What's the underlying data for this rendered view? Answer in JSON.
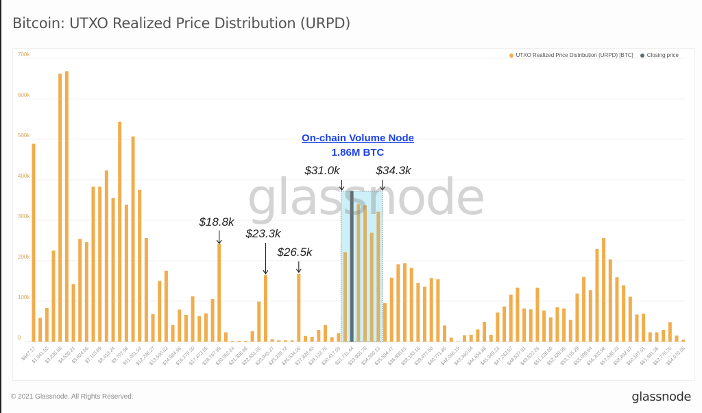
{
  "title": "Bitcoin: UTXO Realized Price Distribution (URPD)",
  "footer": "© 2021 Glassnode. All Rights Reserved.",
  "logo_text": "glassnode",
  "watermark": "glassnode",
  "chart_data": {
    "type": "bar",
    "title": "Bitcoin: UTXO Realized Price Distribution (URPD)",
    "xlabel": "",
    "ylabel": "",
    "ylim": [
      0,
      700000
    ],
    "yticks": [
      "0",
      "100k",
      "200k",
      "300k",
      "400k",
      "500k",
      "600k",
      "700k"
    ],
    "grid": true,
    "legend_position": "top-right",
    "tick_labels": [
      "$647.17",
      "$1,941.52",
      "$3,235.86",
      "$4,530.21",
      "$5,824.55",
      "$7,118.89",
      "$8,413.24",
      "$9,707.58",
      "$11,001.93",
      "$12,296.27",
      "$13,590.62",
      "$14,884.96",
      "$16,179.30",
      "$17,473.65",
      "$18,767.99",
      "$20,062.34",
      "$21,356.68",
      "$22,651.03",
      "$23,945.37",
      "$25,239.72",
      "$26,534.06",
      "$27,828.40",
      "$29,122.75",
      "$30,417.09",
      "$31,711.44",
      "$33,005.78",
      "$34,300.13",
      "$35,594.47",
      "$36,888.81",
      "$38,183.16",
      "$39,477.50",
      "$40,771.85",
      "$42,066.19",
      "$43,360.54",
      "$44,654.88",
      "$45,949.23",
      "$47,243.57",
      "$48,537.91",
      "$49,832.26",
      "$51,126.60",
      "$52,420.95",
      "$53,715.29",
      "$55,009.64",
      "$56,303.98",
      "$57,598.33",
      "$58,892.67",
      "$60,187.01",
      "$61,481.36",
      "$62,775.70",
      "$64,070.05"
    ],
    "series": [
      {
        "name": "UTXO Realized Price Distribution (URPD) [BTC]",
        "color": "#f0ad4e",
        "values": [
          489000,
          59000,
          83000,
          225000,
          662000,
          668000,
          142000,
          254000,
          246000,
          383000,
          383000,
          423000,
          355000,
          543000,
          338000,
          507000,
          375000,
          256000,
          68000,
          150000,
          175000,
          41000,
          79000,
          66000,
          112000,
          63000,
          70000,
          105000,
          241000,
          23000,
          2000,
          2000,
          2000,
          26000,
          99000,
          164000,
          6000,
          3000,
          3000,
          3000,
          168000,
          14000,
          12000,
          29000,
          41000,
          11000,
          21000,
          221000,
          372000,
          340000,
          337000,
          269000,
          321000,
          95000,
          158000,
          191000,
          194000,
          182000,
          145000,
          136000,
          157000,
          154000,
          40000,
          10000,
          1000,
          16000,
          17000,
          30000,
          49000,
          17000,
          72000,
          87000,
          116000,
          133000,
          82000,
          80000,
          133000,
          77000,
          60000,
          85000,
          82000,
          54000,
          119000,
          160000,
          127000,
          229000,
          256000,
          203000,
          159000,
          139000,
          111000,
          67000,
          69000,
          23000,
          23000,
          29000,
          48000,
          15000,
          5000
        ]
      },
      {
        "name": "Closing price",
        "color": "#5f6f73",
        "bin_price": "$31,711.44"
      }
    ],
    "annotations": {
      "peaks": [
        "$18.8k",
        "$23.3k",
        "$26.5k"
      ],
      "range_start": "$31.0k",
      "range_end": "$34.3k",
      "node_title": "On-chain Volume Node",
      "node_value": "1.86M BTC",
      "node_color": "#1e44e8",
      "box_color": "#cdeff7"
    }
  }
}
